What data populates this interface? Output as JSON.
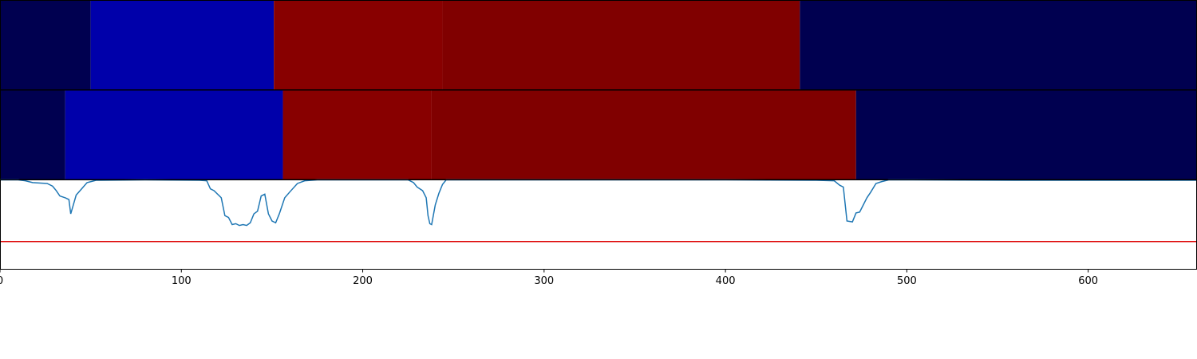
{
  "chart_data": [
    {
      "type": "segments",
      "xlim": [
        0,
        660
      ],
      "bounds": [
        0,
        50,
        151,
        244,
        441,
        660
      ],
      "colors": [
        "#000050",
        "#0000aa",
        "#880000",
        "#800000",
        "#000050"
      ]
    },
    {
      "type": "segments",
      "xlim": [
        0,
        660
      ],
      "bounds": [
        0,
        36,
        156,
        238,
        472,
        660
      ],
      "colors": [
        "#000050",
        "#0000aa",
        "#880000",
        "#800000",
        "#000050"
      ]
    },
    {
      "type": "line",
      "xlim": [
        0,
        660
      ],
      "ylim": [
        0,
        1
      ],
      "color": "#1f77b4",
      "xticks": [
        0,
        100,
        200,
        300,
        400,
        500,
        600
      ],
      "hline": 0.31,
      "hline_color": "#dd0000",
      "x": [
        0,
        10,
        14,
        18,
        26,
        29,
        31,
        33,
        36,
        38,
        39,
        42,
        45,
        48,
        53,
        80,
        110,
        114,
        116,
        118,
        122,
        124,
        126,
        128,
        130,
        132,
        134,
        136,
        138,
        140,
        142,
        144,
        146,
        148,
        150,
        152,
        154,
        157,
        160,
        164,
        168,
        175,
        200,
        225,
        228,
        230,
        233,
        235,
        236,
        237,
        238,
        240,
        242,
        244,
        246,
        250,
        300,
        400,
        450,
        460,
        463,
        465,
        467,
        470,
        472,
        474,
        476,
        478,
        480,
        483,
        486,
        490,
        500,
        560,
        600,
        660
      ],
      "values": [
        1.0,
        1.0,
        0.99,
        0.97,
        0.96,
        0.93,
        0.88,
        0.82,
        0.8,
        0.78,
        0.62,
        0.83,
        0.9,
        0.97,
        0.995,
        1.0,
        0.995,
        0.99,
        0.9,
        0.88,
        0.8,
        0.6,
        0.58,
        0.5,
        0.51,
        0.49,
        0.5,
        0.49,
        0.52,
        0.62,
        0.65,
        0.82,
        0.84,
        0.62,
        0.54,
        0.52,
        0.62,
        0.8,
        0.87,
        0.96,
        0.99,
        1.0,
        1.0,
        1.0,
        0.97,
        0.92,
        0.88,
        0.8,
        0.6,
        0.51,
        0.5,
        0.72,
        0.85,
        0.95,
        1.0,
        1.0,
        1.0,
        1.0,
        0.995,
        0.99,
        0.94,
        0.92,
        0.54,
        0.53,
        0.63,
        0.64,
        0.72,
        0.8,
        0.86,
        0.96,
        0.98,
        1.0,
        1.0,
        0.995,
        0.995,
        0.995
      ]
    }
  ]
}
